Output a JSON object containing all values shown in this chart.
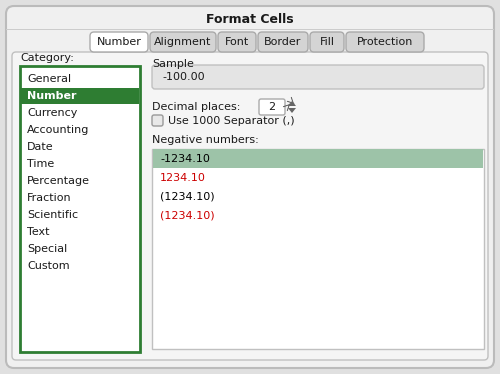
{
  "title": "Format Cells",
  "tabs": [
    "Number",
    "Alignment",
    "Font",
    "Border",
    "Fill",
    "Protection"
  ],
  "active_tab": "Number",
  "category_label": "Category:",
  "categories": [
    "General",
    "Number",
    "Currency",
    "Accounting",
    "Date",
    "Time",
    "Percentage",
    "Fraction",
    "Scientific",
    "Text",
    "Special",
    "Custom"
  ],
  "selected_category": "Number",
  "sample_label": "Sample",
  "sample_value": "-100.00",
  "decimal_label": "Decimal places:",
  "decimal_value": "2",
  "separator_label": "Use 1000 Separator (,)",
  "negative_label": "Negative numbers:",
  "negative_options": [
    "-1234.10",
    "1234.10",
    "(1234.10)",
    "(1234.10)"
  ],
  "negative_colors": [
    "#000000",
    "#cc0000",
    "#000000",
    "#cc0000"
  ],
  "selected_negative": 0,
  "selected_negative_bg": "#9dc3a8",
  "bg_color": "#e0e0e0",
  "category_box_border": "#2e7d32",
  "category_selected_bg": "#2e7d32",
  "category_selected_fg": "#ffffff",
  "sample_box_bg": "#e4e4e4",
  "negative_box_bg": "#ffffff",
  "tab_active_bg": "#ffffff",
  "tab_inactive_bg": "#d4d4d4",
  "title_fontsize": 9,
  "tab_fontsize": 8,
  "body_fontsize": 8,
  "small_fontsize": 7,
  "fig_width": 5.0,
  "fig_height": 3.74
}
